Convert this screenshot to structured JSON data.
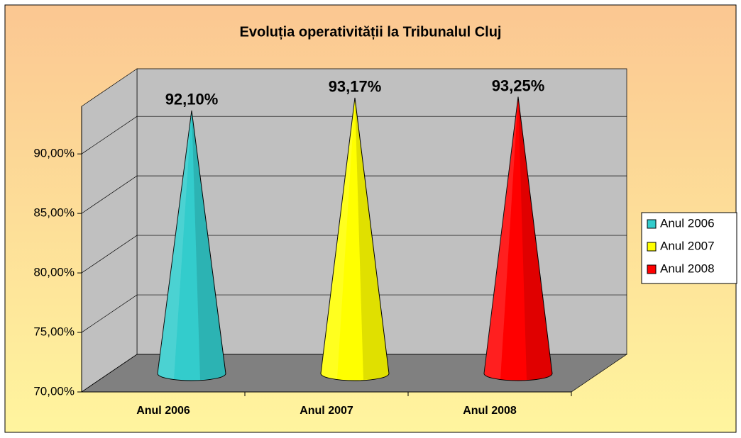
{
  "chart_data": {
    "type": "cone",
    "title": "Evoluția operativității la Tribunalul Cluj",
    "categories": [
      "Anul 2006",
      "Anul 2007",
      "Anul 2008"
    ],
    "values": [
      92.1,
      93.17,
      93.25
    ],
    "value_labels": [
      "92,10%",
      "93,17%",
      "93,25%"
    ],
    "colors": [
      "#33cccc",
      "#ffff00",
      "#ff0000"
    ],
    "ylim": [
      70,
      94
    ],
    "yticks": [
      {
        "value": 70,
        "label": "70,00%"
      },
      {
        "value": 75,
        "label": "75,00%"
      },
      {
        "value": 80,
        "label": "80,00%"
      },
      {
        "value": 85,
        "label": "85,00%"
      },
      {
        "value": 90,
        "label": "90,00%"
      }
    ],
    "grid": true,
    "legend": "right"
  }
}
